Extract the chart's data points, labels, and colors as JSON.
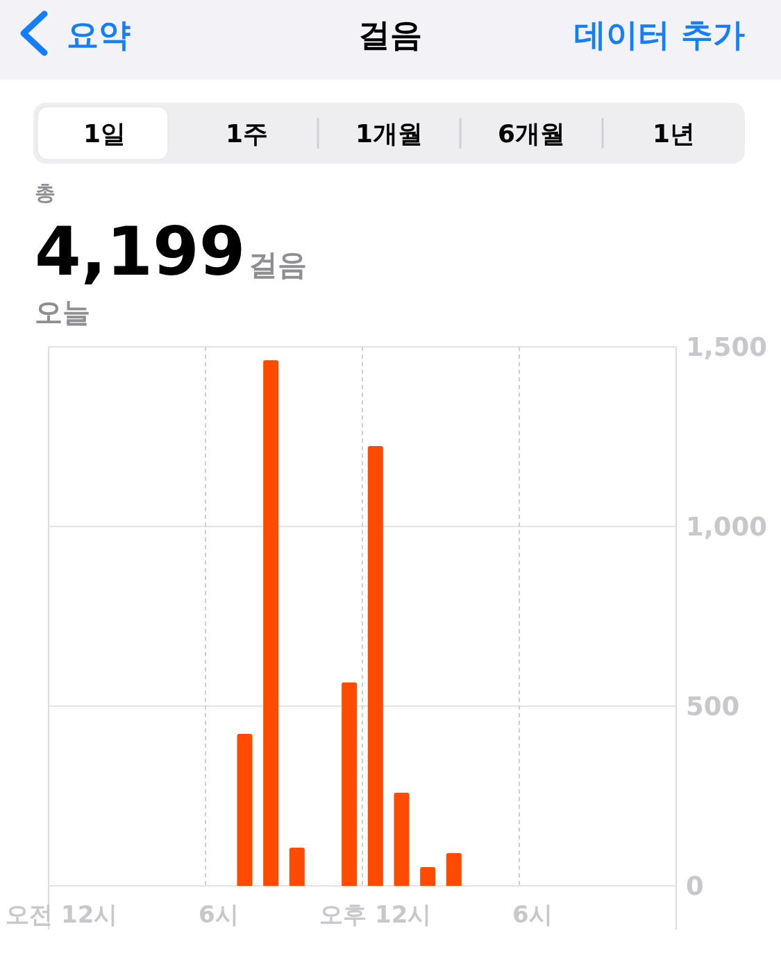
{
  "chart_data": {
    "type": "bar",
    "title": "걸음",
    "annotations": [
      "요약",
      "데이터 추가",
      "1일",
      "1주",
      "1개월",
      "6개월",
      "1년",
      "총",
      "4,199",
      "걸음",
      "오늘"
    ],
    "categories": [
      "오전 12시",
      null,
      null,
      null,
      null,
      null,
      "6시",
      null,
      null,
      null,
      null,
      null,
      "오후 12시",
      null,
      null,
      null,
      null,
      null,
      "6시",
      null,
      null,
      null,
      null,
      null
    ],
    "values": [
      0,
      0,
      0,
      0,
      0,
      0,
      0,
      423,
      1463,
      106,
      0,
      566,
      1224,
      259,
      52,
      91,
      0,
      0,
      0,
      0,
      0,
      0,
      0,
      0
    ],
    "color": "#ff4b00",
    "ylim": [
      0,
      1500
    ],
    "yticks": [
      {
        "value": 0,
        "label": "0"
      },
      {
        "value": 500,
        "label": "500"
      },
      {
        "value": 1000,
        "label": "1,000"
      },
      {
        "value": 1500,
        "label": "1,500"
      }
    ],
    "grid": true
  }
}
